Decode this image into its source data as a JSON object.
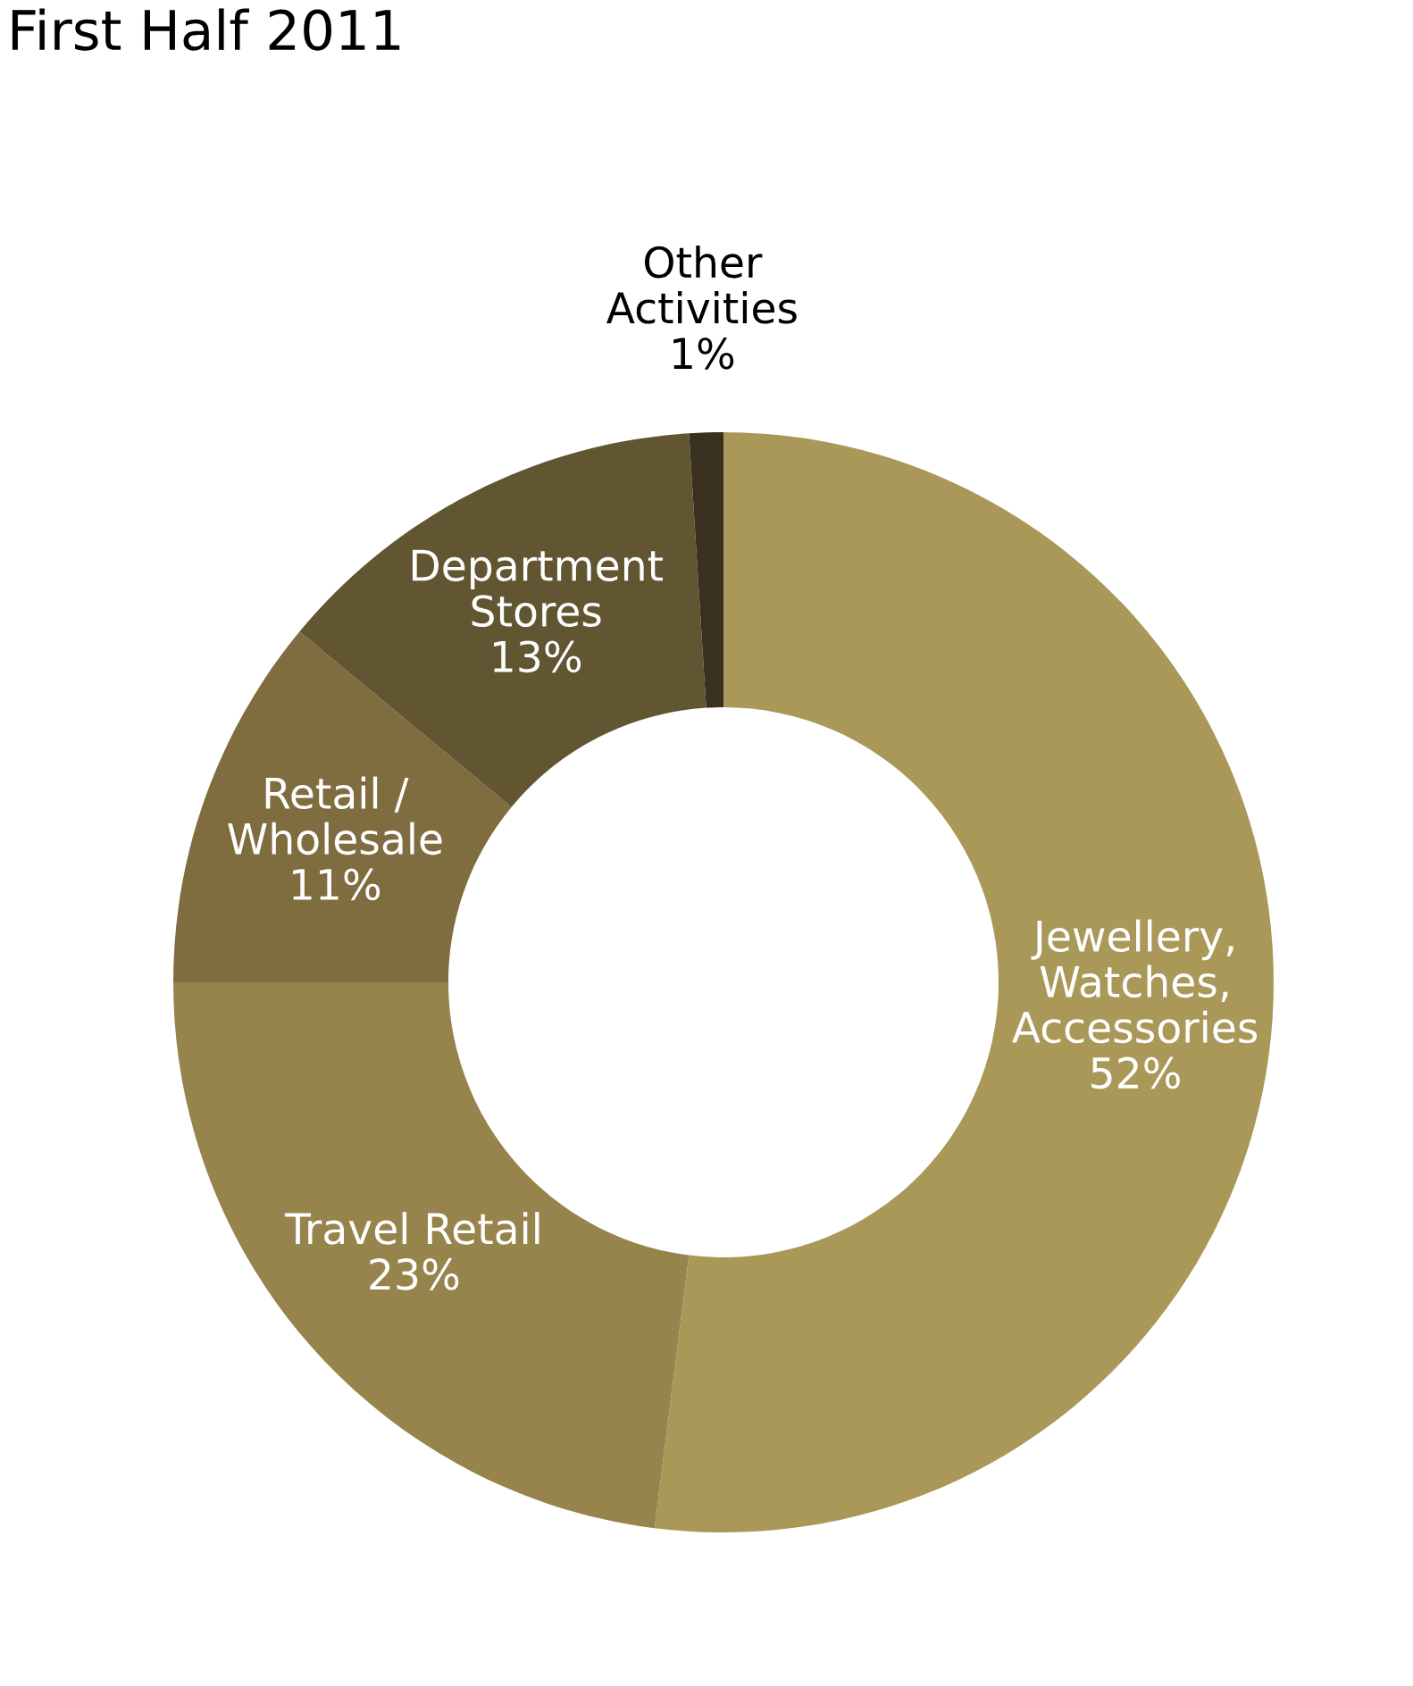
{
  "chart_data": {
    "type": "donut",
    "title": "First Half 2011",
    "categories": [
      "Jewellery,\nWatches,\nAccessories",
      "Travel Retail",
      "Retail /\nWholesale",
      "Department\nStores",
      "Other\nActivities"
    ],
    "values": [
      52,
      23,
      11,
      13,
      1
    ],
    "colors": [
      "#aa9859",
      "#96844c",
      "#7f6d40",
      "#625532",
      "#3a3020"
    ],
    "value_labels": [
      "52%",
      "23%",
      "11%",
      "13%",
      "1%"
    ],
    "legend": false
  }
}
